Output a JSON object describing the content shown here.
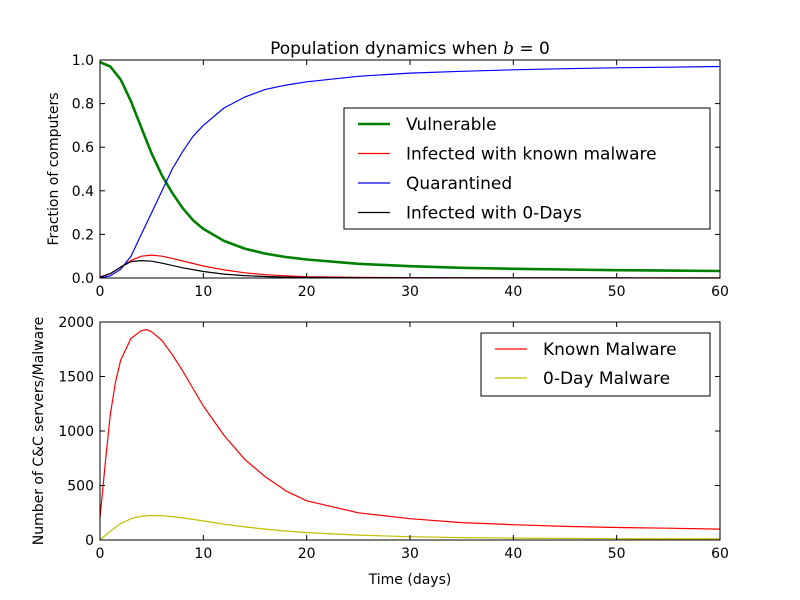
{
  "chart_data": [
    {
      "type": "line",
      "title": "Population dynamics when ",
      "title_math": "b",
      "title_tail": " = 0",
      "xlabel": "",
      "ylabel": "Fraction of computers",
      "xlim": [
        0,
        60
      ],
      "ylim": [
        0,
        1.0
      ],
      "xticks": [
        0,
        10,
        20,
        30,
        40,
        50,
        60
      ],
      "yticks": [
        0.0,
        0.2,
        0.4,
        0.6,
        0.8,
        1.0
      ],
      "ytick_labels": [
        "0.0",
        "0.2",
        "0.4",
        "0.6",
        "0.8",
        "1.0"
      ],
      "legend_position": "center-right",
      "series": [
        {
          "name": "Vulnerable",
          "color": "#008000",
          "width": 2.6,
          "x": [
            0,
            1,
            2,
            3,
            4,
            5,
            6,
            7,
            8,
            9,
            10,
            12,
            14,
            16,
            18,
            20,
            25,
            30,
            35,
            40,
            45,
            50,
            55,
            60
          ],
          "y": [
            0.99,
            0.97,
            0.91,
            0.81,
            0.69,
            0.57,
            0.47,
            0.39,
            0.32,
            0.265,
            0.225,
            0.17,
            0.135,
            0.112,
            0.096,
            0.085,
            0.065,
            0.054,
            0.047,
            0.042,
            0.039,
            0.036,
            0.034,
            0.032
          ]
        },
        {
          "name": "Infected with known malware",
          "color": "#ff0000",
          "width": 1.2,
          "x": [
            0,
            1,
            2,
            3,
            4,
            5,
            6,
            7,
            8,
            10,
            12,
            14,
            16,
            18,
            20,
            25,
            30,
            40,
            50,
            60
          ],
          "y": [
            0.005,
            0.02,
            0.05,
            0.08,
            0.1,
            0.105,
            0.1,
            0.09,
            0.078,
            0.055,
            0.037,
            0.024,
            0.015,
            0.01,
            0.006,
            0.003,
            0.002,
            0.001,
            0.0005,
            0.0003
          ]
        },
        {
          "name": "Quarantined",
          "color": "#0000ff",
          "width": 1.2,
          "x": [
            0,
            1,
            2,
            3,
            4,
            5,
            6,
            7,
            8,
            9,
            10,
            12,
            14,
            16,
            18,
            20,
            25,
            30,
            35,
            40,
            45,
            50,
            55,
            60
          ],
          "y": [
            0.0,
            0.01,
            0.04,
            0.1,
            0.2,
            0.3,
            0.4,
            0.5,
            0.58,
            0.65,
            0.7,
            0.78,
            0.83,
            0.865,
            0.885,
            0.9,
            0.925,
            0.94,
            0.948,
            0.955,
            0.96,
            0.964,
            0.967,
            0.97
          ]
        },
        {
          "name": "Infected with 0-Days",
          "color": "#000000",
          "width": 1.2,
          "x": [
            0,
            1,
            2,
            3,
            4,
            5,
            6,
            7,
            8,
            10,
            12,
            14,
            16,
            18,
            20,
            25,
            30,
            40,
            50,
            60
          ],
          "y": [
            0.003,
            0.02,
            0.05,
            0.075,
            0.08,
            0.077,
            0.068,
            0.058,
            0.047,
            0.03,
            0.018,
            0.011,
            0.007,
            0.004,
            0.003,
            0.0015,
            0.001,
            0.0005,
            0.0003,
            0.0002
          ]
        }
      ]
    },
    {
      "type": "line",
      "title": "",
      "xlabel": "Time (days)",
      "ylabel": "Number of C&C servers/Malware",
      "xlim": [
        0,
        60
      ],
      "ylim": [
        0,
        2000
      ],
      "xticks": [
        0,
        10,
        20,
        30,
        40,
        50,
        60
      ],
      "yticks": [
        0,
        500,
        1000,
        1500,
        2000
      ],
      "ytick_labels": [
        "0",
        "500",
        "1000",
        "1500",
        "2000"
      ],
      "legend_position": "top-right",
      "series": [
        {
          "name": "Known Malware",
          "color": "#ff0000",
          "width": 1.2,
          "x": [
            0,
            0.5,
            1,
            1.5,
            2,
            3,
            4,
            4.5,
            5,
            6,
            7,
            8,
            9,
            10,
            12,
            14,
            16,
            18,
            20,
            25,
            30,
            35,
            40,
            45,
            50,
            55,
            60
          ],
          "y": [
            200,
            700,
            1150,
            1450,
            1650,
            1850,
            1920,
            1930,
            1910,
            1830,
            1700,
            1550,
            1390,
            1230,
            960,
            740,
            580,
            450,
            360,
            250,
            195,
            160,
            140,
            125,
            115,
            108,
            100
          ]
        },
        {
          "name": "0-Day Malware",
          "color": "#bfbf00",
          "width": 1.2,
          "x": [
            0,
            1,
            2,
            3,
            4,
            5,
            6,
            7,
            8,
            10,
            12,
            14,
            16,
            18,
            20,
            25,
            30,
            35,
            40,
            50,
            60
          ],
          "y": [
            0,
            80,
            150,
            195,
            218,
            225,
            223,
            215,
            203,
            175,
            145,
            120,
            100,
            83,
            68,
            45,
            30,
            22,
            17,
            12,
            10
          ]
        }
      ]
    }
  ]
}
